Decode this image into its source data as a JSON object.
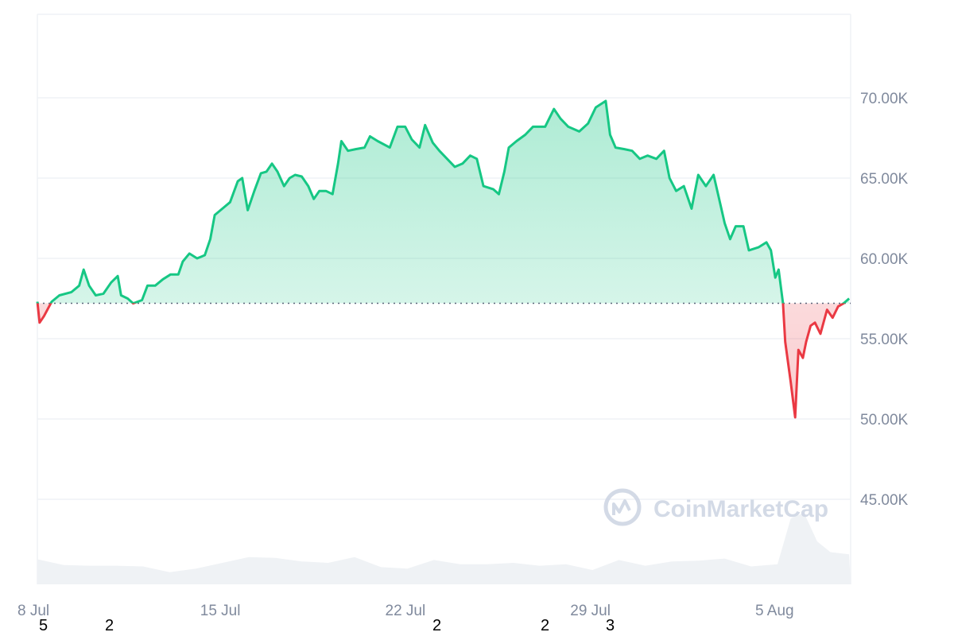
{
  "chart_data": {
    "type": "area",
    "title": "",
    "xlabel": "",
    "ylabel": "",
    "ylim": [
      40.0,
      75.0
    ],
    "y_ticks": [
      "45.00K",
      "50.00K",
      "55.00K",
      "60.00K",
      "65.00K",
      "70.00K"
    ],
    "y_tick_values": [
      45,
      50,
      55,
      60,
      65,
      70
    ],
    "x_ticks": [
      "8 Jul",
      "15 Jul",
      "22 Jul",
      "29 Jul",
      "5 Aug"
    ],
    "x_tick_dates": [
      "07-08 00:00",
      "07-15 00:00",
      "07-22 00:00",
      "07-29 00:00",
      "08-05 00:00"
    ],
    "y_unit": "K",
    "grid": "horizontal",
    "baseline_value": 57.2,
    "colors": {
      "above": "#16c784",
      "below": "#ea3943",
      "grid": "#eff2f5",
      "volume": "#eff2f5",
      "ticks": "#808a9d"
    },
    "watermark": "CoinMarketCap",
    "series": [
      {
        "x": [
          "07-08 00:00",
          "07-08 02:00",
          "07-08 06:00",
          "07-08 13:00",
          "07-08 20:00",
          "07-09 07:00",
          "07-09 14:00",
          "07-09 18:00",
          "07-09 23:00",
          "07-10 05:00",
          "07-10 12:00",
          "07-10 19:00",
          "07-11 01:00",
          "07-11 04:00",
          "07-11 10:00",
          "07-11 15:00",
          "07-11 23:00",
          "07-12 04:00",
          "07-12 11:00",
          "07-12 18:00",
          "07-13 01:00",
          "07-13 08:00",
          "07-13 12:00",
          "07-13 18:00",
          "07-14 01:00",
          "07-14 08:00",
          "07-14 13:00",
          "07-14 17:00",
          "07-15 00:00",
          "07-15 07:00",
          "07-15 14:00",
          "07-15 18:00",
          "07-15 23:00",
          "07-16 05:00",
          "07-16 11:00",
          "07-16 16:00",
          "07-16 21:00",
          "07-17 02:00",
          "07-17 08:00",
          "07-17 13:00",
          "07-17 18:00",
          "07-18 00:00",
          "07-18 06:00",
          "07-18 11:00",
          "07-18 16:00",
          "07-18 22:00",
          "07-19 04:00",
          "07-19 09:00",
          "07-19 12:00",
          "07-19 18:00",
          "07-20 01:00",
          "07-20 09:00",
          "07-20 14:00",
          "07-20 21:00",
          "07-21 08:00",
          "07-21 15:00",
          "07-21 22:00",
          "07-22 04:00",
          "07-22 11:00",
          "07-22 16:00",
          "07-22 23:00",
          "07-23 05:00",
          "07-23 12:00",
          "07-23 19:00",
          "07-24 02:00",
          "07-24 09:00",
          "07-24 15:00",
          "07-24 21:00",
          "07-25 06:00",
          "07-25 11:00",
          "07-25 16:00",
          "07-25 20:00",
          "07-26 03:00",
          "07-26 11:00",
          "07-26 18:00",
          "07-27 05:00",
          "07-27 13:00",
          "07-27 19:00",
          "07-28 02:00",
          "07-28 12:00",
          "07-28 20:00",
          "07-29 03:00",
          "07-29 12:00",
          "07-29 16:00",
          "07-29 21:00",
          "07-30 05:00",
          "07-30 12:00",
          "07-30 19:00",
          "07-31 02:00",
          "07-31 10:00",
          "07-31 17:00",
          "07-31 22:00",
          "08-01 04:00",
          "08-01 11:00",
          "08-01 18:00",
          "08-02 00:00",
          "08-02 07:00",
          "08-02 14:00",
          "08-02 19:00",
          "08-03 00:00",
          "08-03 05:00",
          "08-03 10:00",
          "08-03 17:00",
          "08-03 22:00",
          "08-04 07:00",
          "08-04 14:00",
          "08-04 18:00",
          "08-04 22:00",
          "08-05 01:00",
          "08-05 05:00",
          "08-05 07:00",
          "08-05 12:00",
          "08-05 16:00",
          "08-05 19:00",
          "08-05 23:00",
          "08-06 02:00",
          "08-06 06:00",
          "08-06 10:00",
          "08-06 15:00",
          "08-06 21:00",
          "08-07 02:00",
          "08-07 07:00",
          "08-07 12:00",
          "08-07 17:00"
        ],
        "values": [
          57.3,
          56.0,
          56.4,
          57.3,
          57.7,
          57.9,
          58.3,
          59.3,
          58.3,
          57.7,
          57.8,
          58.5,
          58.9,
          57.7,
          57.5,
          57.2,
          57.4,
          58.3,
          58.3,
          58.7,
          59.0,
          59.0,
          59.8,
          60.3,
          60.0,
          60.2,
          61.2,
          62.7,
          63.1,
          63.5,
          64.8,
          65.0,
          63.0,
          64.2,
          65.3,
          65.4,
          65.9,
          65.4,
          64.5,
          65.0,
          65.2,
          65.1,
          64.5,
          63.7,
          64.2,
          64.2,
          64.0,
          65.9,
          67.3,
          66.7,
          66.8,
          66.9,
          67.6,
          67.3,
          66.9,
          68.2,
          68.2,
          67.4,
          66.9,
          68.3,
          67.2,
          66.7,
          66.2,
          65.7,
          65.9,
          66.4,
          66.2,
          64.5,
          64.3,
          64.0,
          65.4,
          66.9,
          67.3,
          67.7,
          68.2,
          68.2,
          69.3,
          68.7,
          68.2,
          67.9,
          68.4,
          69.4,
          69.8,
          67.7,
          66.9,
          66.8,
          66.7,
          66.2,
          66.4,
          66.2,
          66.7,
          65.0,
          64.2,
          64.5,
          63.1,
          65.2,
          64.5,
          65.2,
          63.7,
          62.2,
          61.2,
          62.0,
          62.0,
          60.5,
          60.7,
          61.0,
          60.5,
          58.8,
          59.3,
          57.2,
          54.8,
          52.3,
          50.1,
          54.3,
          53.8,
          54.8,
          55.8,
          56.0,
          55.3,
          56.8,
          56.3,
          57.0,
          57.2,
          57.5
        ]
      }
    ],
    "volume_relative": {
      "x": [
        "07-08 00:00",
        "07-09 00:00",
        "07-10 00:00",
        "07-11 00:00",
        "07-12 00:00",
        "07-13 00:00",
        "07-14 00:00",
        "07-15 00:00",
        "07-16 00:00",
        "07-17 00:00",
        "07-18 00:00",
        "07-19 00:00",
        "07-20 00:00",
        "07-21 00:00",
        "07-22 00:00",
        "07-23 00:00",
        "07-24 00:00",
        "07-25 00:00",
        "07-26 00:00",
        "07-27 00:00",
        "07-28 00:00",
        "07-29 00:00",
        "07-30 00:00",
        "07-31 00:00",
        "08-01 00:00",
        "08-02 00:00",
        "08-03 00:00",
        "08-04 00:00",
        "08-05 00:00",
        "08-05 12:00",
        "08-06 00:00",
        "08-06 12:00",
        "08-07 00:00",
        "08-07 17:00"
      ],
      "values": [
        35,
        27,
        26,
        26,
        25,
        17,
        22,
        30,
        38,
        37,
        32,
        30,
        38,
        24,
        22,
        34,
        28,
        28,
        30,
        26,
        28,
        20,
        34,
        26,
        32,
        33,
        36,
        25,
        28,
        92,
        100,
        60,
        45,
        42
      ]
    },
    "extra_labels": [
      {
        "text": "5",
        "under": "8 Jul"
      },
      {
        "text": "2"
      },
      {
        "text": "2"
      },
      {
        "text": "2"
      },
      {
        "text": "3"
      }
    ]
  }
}
